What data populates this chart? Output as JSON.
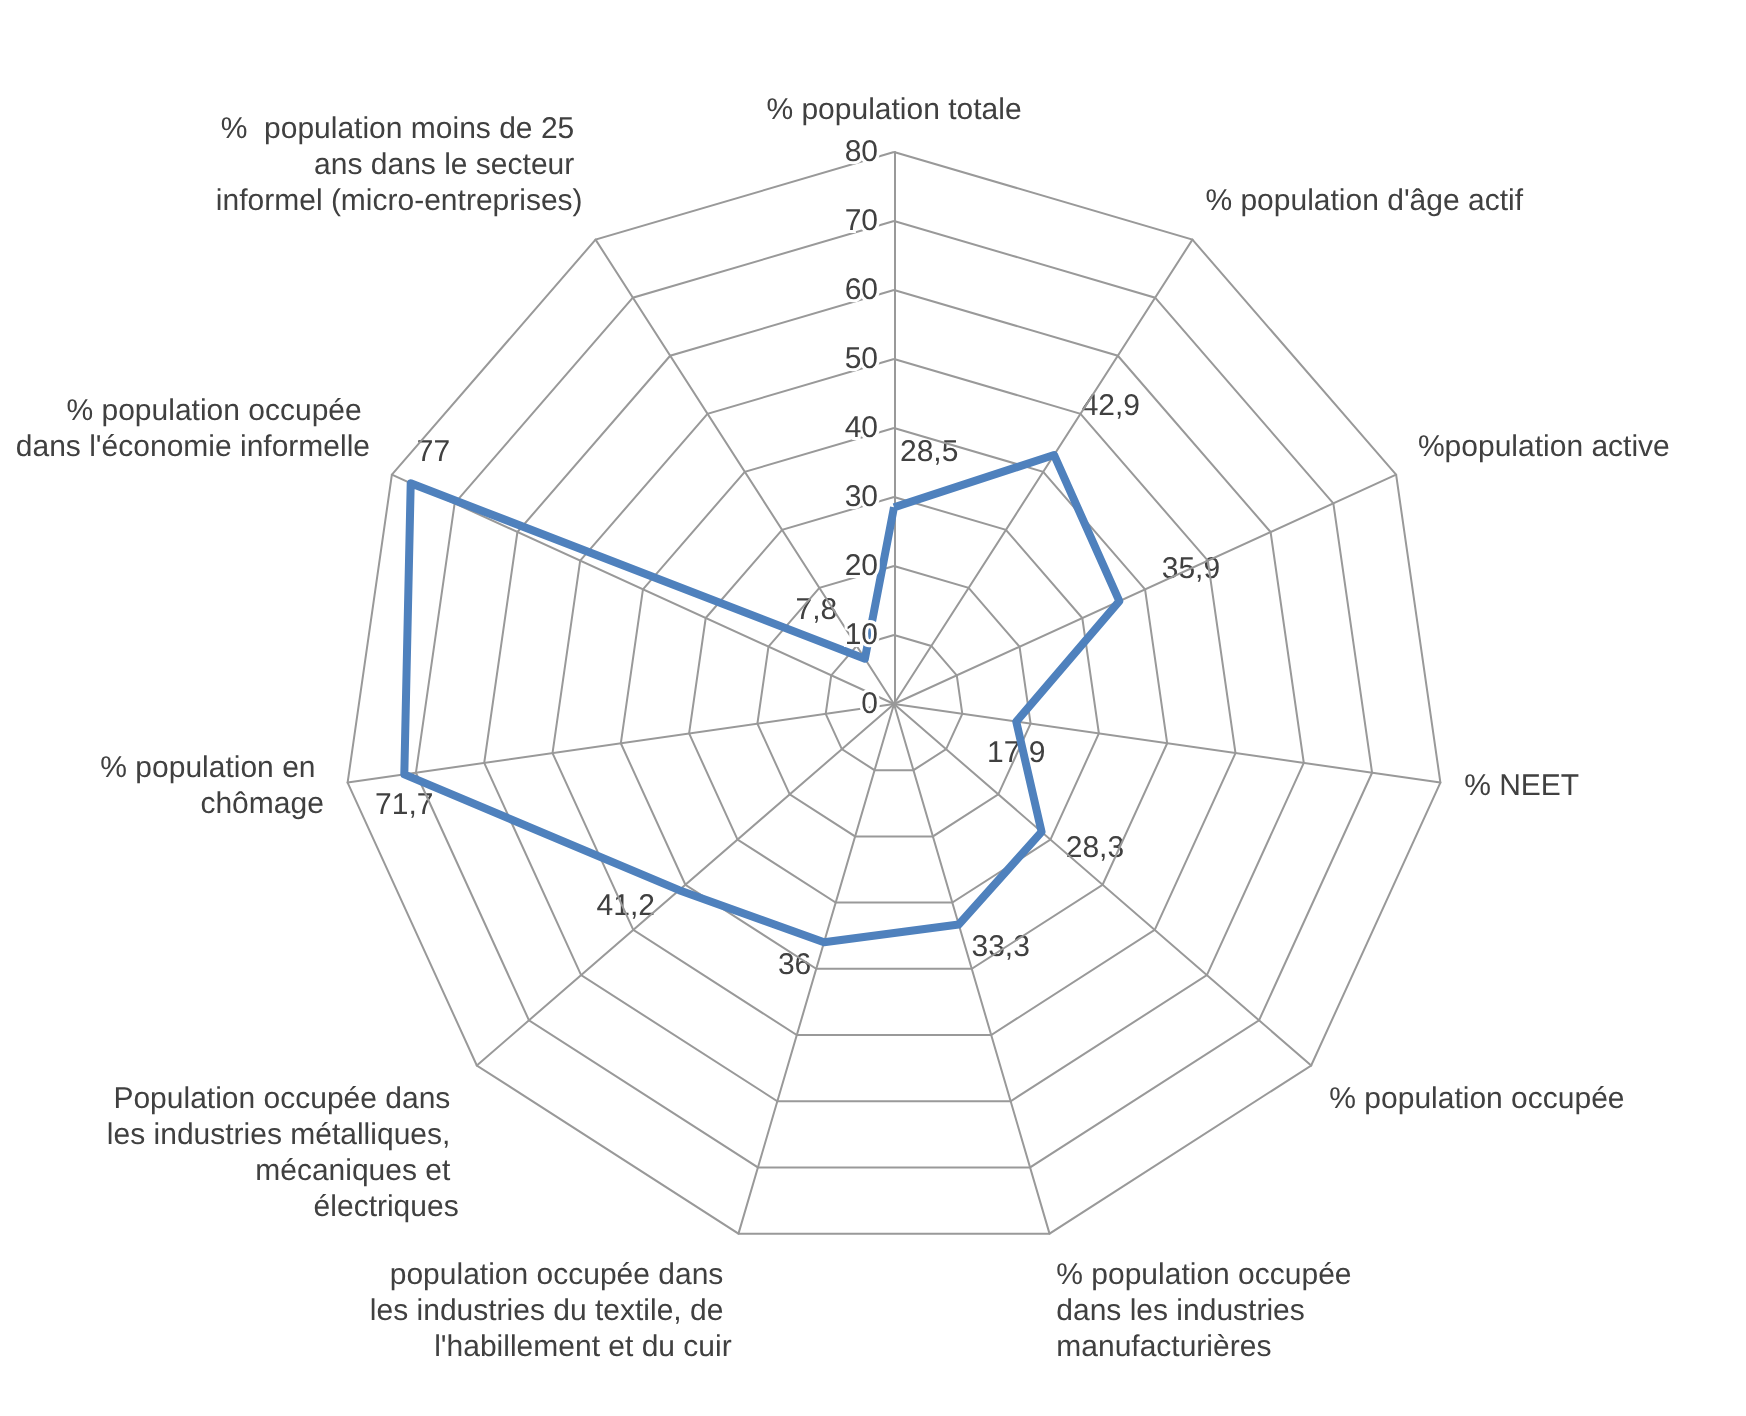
{
  "chart_data": {
    "type": "radar",
    "categories": [
      "% population totale",
      "% population d'âge actif",
      "%population active",
      "% NEET",
      "% population occupée",
      "% population occupée dans les industries manufacturières",
      "population occupée dans les industries du textile, de l'habillement et du cuir",
      "Population occupée dans les industries métalliques, mécaniques et électriques",
      "% population en chômage",
      "% population occupée dans l'économie informelle",
      "%  population moins de 25 ans dans le secteur informel (micro-entreprises)"
    ],
    "series": [
      {
        "color": "#4f81bd",
        "values": [
          28.5,
          42.9,
          35.9,
          17.9,
          28.3,
          33.3,
          36,
          41.2,
          71.7,
          77,
          7.8
        ],
        "value_labels": [
          "28,5",
          "42,9",
          "35,9",
          "17,9",
          "28,3",
          "33,3",
          "36",
          "41,2",
          "71,7",
          "77",
          "7,8"
        ]
      }
    ],
    "ylim": [
      0,
      80
    ],
    "yticks": [
      0,
      10,
      20,
      30,
      40,
      50,
      60,
      70,
      80
    ],
    "marker": "none",
    "line_style": "solid"
  }
}
